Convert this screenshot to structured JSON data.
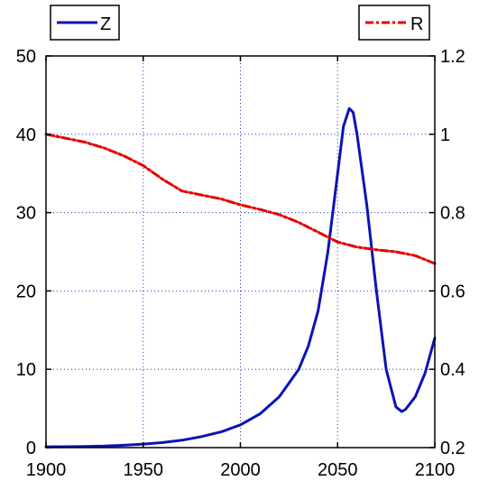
{
  "chart_data": {
    "type": "line",
    "x_ticks": [
      "1900",
      "1950",
      "2000",
      "2050",
      "2100"
    ],
    "x_tick_values": [
      1900,
      1950,
      2000,
      2050,
      2100
    ],
    "xlim": [
      1900,
      2100
    ],
    "y_left_ticks": [
      "0",
      "10",
      "20",
      "30",
      "40",
      "50"
    ],
    "y_left_tick_values": [
      0,
      10,
      20,
      30,
      40,
      50
    ],
    "ylim_left": [
      0,
      50
    ],
    "y_right_ticks": [
      "0.2",
      "0.4",
      "0.6",
      "0.8",
      "1",
      "1.2"
    ],
    "y_right_tick_values": [
      0.2,
      0.4,
      0.6,
      0.8,
      1.0,
      1.2
    ],
    "ylim_right": [
      0.2,
      1.2
    ],
    "grid": true,
    "legend": [
      {
        "label": "Z",
        "placement": "top-left"
      },
      {
        "label": "R",
        "placement": "top-right"
      }
    ],
    "series": [
      {
        "name": "Z",
        "axis": "left",
        "color": "#0a14b4",
        "style": "solid",
        "points": [
          [
            1900,
            0.1
          ],
          [
            1910,
            0.12
          ],
          [
            1920,
            0.15
          ],
          [
            1930,
            0.2
          ],
          [
            1940,
            0.3
          ],
          [
            1950,
            0.45
          ],
          [
            1960,
            0.65
          ],
          [
            1970,
            0.95
          ],
          [
            1980,
            1.4
          ],
          [
            1990,
            2.0
          ],
          [
            2000,
            2.9
          ],
          [
            2010,
            4.3
          ],
          [
            2020,
            6.5
          ],
          [
            2030,
            10.0
          ],
          [
            2035,
            13.0
          ],
          [
            2040,
            17.5
          ],
          [
            2045,
            25.0
          ],
          [
            2050,
            35.0
          ],
          [
            2053,
            41.0
          ],
          [
            2056,
            43.3
          ],
          [
            2058,
            42.8
          ],
          [
            2060,
            40.0
          ],
          [
            2065,
            31.0
          ],
          [
            2070,
            20.0
          ],
          [
            2075,
            10.0
          ],
          [
            2080,
            5.2
          ],
          [
            2083,
            4.6
          ],
          [
            2085,
            4.9
          ],
          [
            2090,
            6.5
          ],
          [
            2095,
            9.5
          ],
          [
            2100,
            14.0
          ]
        ]
      },
      {
        "name": "R",
        "axis": "right",
        "color": "#e60000",
        "style": "dash-dot",
        "points": [
          [
            1900,
            1.0
          ],
          [
            1910,
            0.99
          ],
          [
            1920,
            0.98
          ],
          [
            1930,
            0.965
          ],
          [
            1940,
            0.945
          ],
          [
            1950,
            0.92
          ],
          [
            1960,
            0.885
          ],
          [
            1970,
            0.855
          ],
          [
            1980,
            0.845
          ],
          [
            1990,
            0.835
          ],
          [
            2000,
            0.82
          ],
          [
            2010,
            0.808
          ],
          [
            2020,
            0.795
          ],
          [
            2030,
            0.775
          ],
          [
            2040,
            0.75
          ],
          [
            2050,
            0.725
          ],
          [
            2060,
            0.712
          ],
          [
            2070,
            0.705
          ],
          [
            2080,
            0.7
          ],
          [
            2090,
            0.69
          ],
          [
            2100,
            0.67
          ]
        ]
      }
    ]
  }
}
